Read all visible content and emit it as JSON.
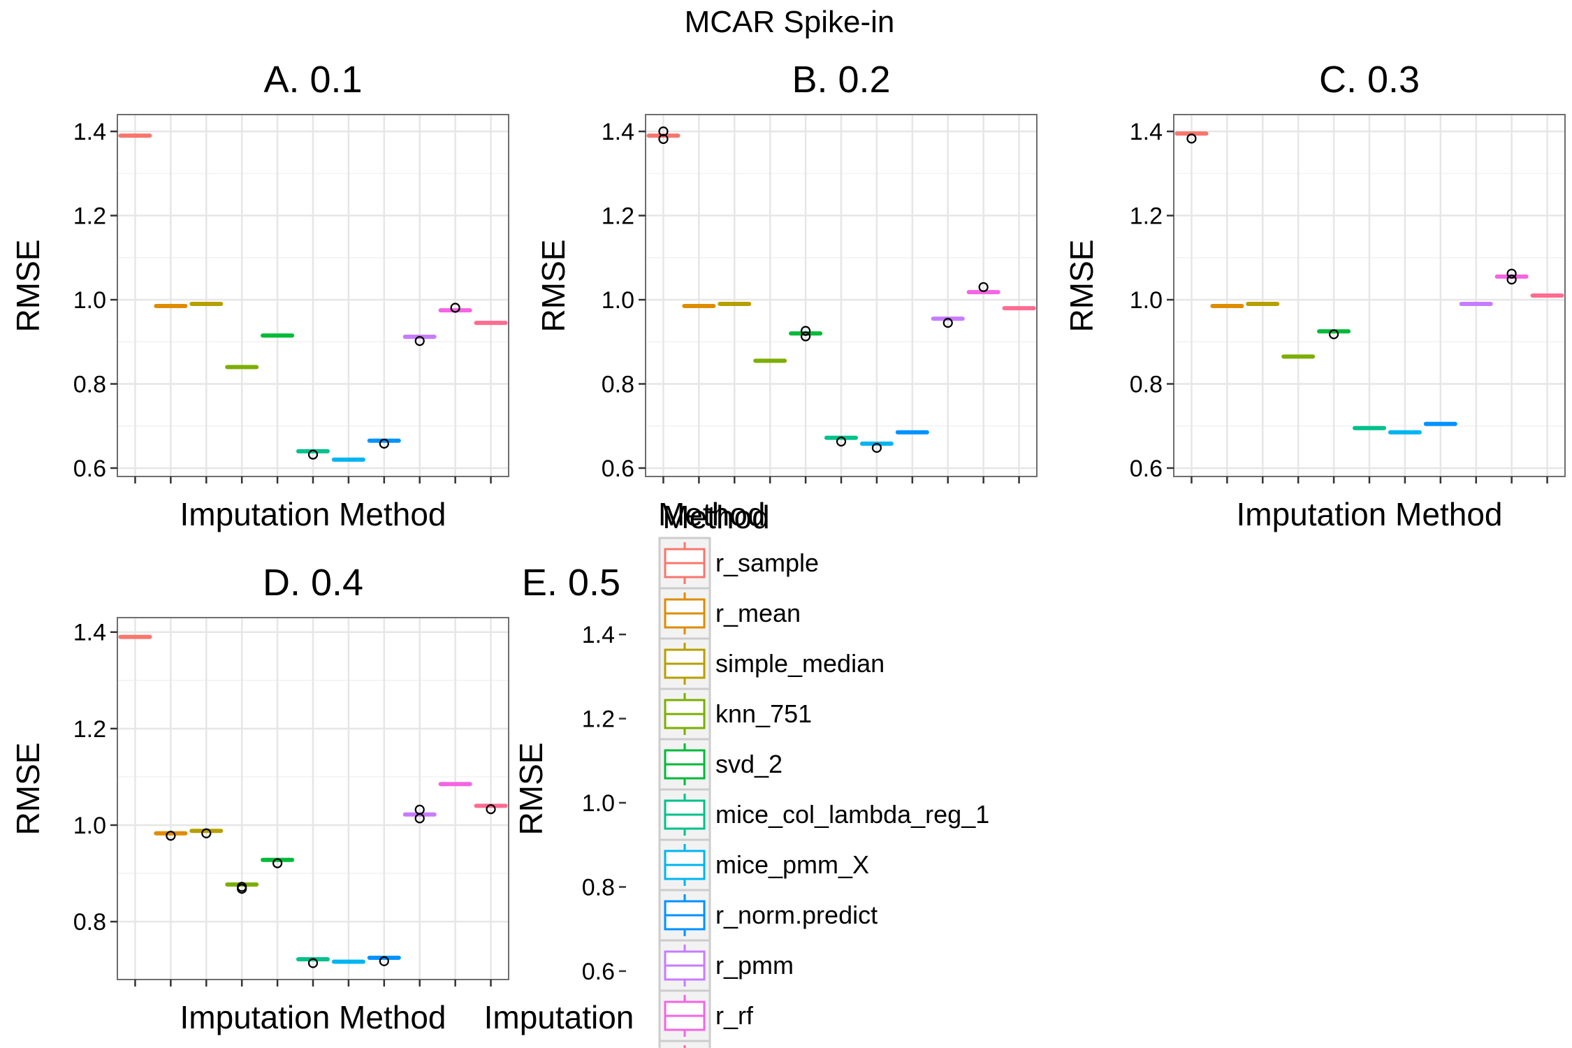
{
  "figure": {
    "title": "MCAR Spike-in"
  },
  "legend": {
    "title": "Method",
    "entries": [
      {
        "name": "r_sample",
        "color": "#F8766D"
      },
      {
        "name": "r_mean",
        "color": "#DE8C00"
      },
      {
        "name": "simple_median",
        "color": "#B79F00"
      },
      {
        "name": "knn_751",
        "color": "#7CAE00"
      },
      {
        "name": "svd_2",
        "color": "#00BA38"
      },
      {
        "name": "mice_col_lambda_reg_1",
        "color": "#00C08B"
      },
      {
        "name": "mice_pmm_X",
        "color": "#00B4F0"
      },
      {
        "name": "r_norm.predict",
        "color": "#0092FF"
      },
      {
        "name": "r_pmm",
        "color": "#C77CFF"
      },
      {
        "name": "r_rf",
        "color": "#F564E3"
      },
      {
        "name": "",
        "color": "#FF6C91"
      }
    ]
  },
  "chart_data": [
    {
      "type": "box",
      "title": "A. 0.1",
      "xlabel": "Imputation Method",
      "ylabel": "RMSE",
      "ylim": [
        0.58,
        1.44
      ],
      "yticks": [
        0.6,
        0.8,
        1.0,
        1.2,
        1.4
      ],
      "ytick_labels": [
        "0.6",
        "0.8",
        "1.0",
        "1.2",
        "1.4"
      ],
      "grid": true,
      "values": [
        1.39,
        0.985,
        0.99,
        0.84,
        0.915,
        0.64,
        0.62,
        0.665,
        0.912,
        0.975,
        0.945
      ],
      "outliers": [
        [],
        [],
        [],
        [],
        [],
        [
          0.632
        ],
        [],
        [
          0.658
        ],
        [
          0.902
        ],
        [
          0.981
        ],
        []
      ]
    },
    {
      "type": "box",
      "title": "B. 0.2",
      "xlabel": "Method",
      "ylabel": "RMSE",
      "ylim": [
        0.58,
        1.44
      ],
      "yticks": [
        0.6,
        0.8,
        1.0,
        1.2,
        1.4
      ],
      "ytick_labels": [
        "0.6",
        "0.8",
        "1.0",
        "1.2",
        "1.4"
      ],
      "grid": true,
      "values": [
        1.39,
        0.985,
        0.99,
        0.855,
        0.92,
        0.672,
        0.658,
        0.685,
        0.955,
        1.018,
        0.98
      ],
      "outliers": [
        [
          1.4,
          1.382
        ],
        [],
        [],
        [],
        [
          0.926,
          0.913
        ],
        [
          0.663
        ],
        [
          0.648
        ],
        [],
        [
          0.945
        ],
        [
          1.03
        ],
        []
      ]
    },
    {
      "type": "box",
      "title": "C. 0.3",
      "xlabel": "Imputation Method",
      "ylabel": "RMSE",
      "ylim": [
        0.58,
        1.44
      ],
      "yticks": [
        0.6,
        0.8,
        1.0,
        1.2,
        1.4
      ],
      "ytick_labels": [
        "0.6",
        "0.8",
        "1.0",
        "1.2",
        "1.4"
      ],
      "grid": true,
      "values": [
        1.395,
        0.985,
        0.99,
        0.865,
        0.925,
        0.695,
        0.685,
        0.705,
        0.99,
        1.055,
        1.01
      ],
      "outliers": [
        [
          1.383
        ],
        [],
        [],
        [],
        [
          0.918
        ],
        [],
        [],
        [],
        [],
        [
          1.062,
          1.048
        ],
        []
      ]
    },
    {
      "type": "box",
      "title": "D. 0.4",
      "xlabel": "Imputation Method",
      "ylabel": "RMSE",
      "ylim": [
        0.68,
        1.43
      ],
      "yticks": [
        0.8,
        1.0,
        1.2,
        1.4
      ],
      "ytick_labels": [
        "0.8",
        "1.0",
        "1.2",
        "1.4"
      ],
      "grid": true,
      "values": [
        1.39,
        0.983,
        0.988,
        0.877,
        0.928,
        0.722,
        0.717,
        0.725,
        1.022,
        1.085,
        1.04
      ],
      "outliers": [
        [],
        [
          0.978
        ],
        [
          0.983
        ],
        [
          0.872,
          0.868
        ],
        [
          0.921
        ],
        [
          0.714
        ],
        [],
        [
          0.718
        ],
        [
          1.032,
          1.014
        ],
        [],
        [
          1.033
        ]
      ]
    },
    {
      "type": "box",
      "title": "E. 0.5",
      "xlabel": "Imputation",
      "ylabel": "RMSE",
      "ylim": [
        0.58,
        1.44
      ],
      "yticks": [
        0.6,
        0.8,
        1.0,
        1.2,
        1.4
      ],
      "ytick_labels": [
        "0.6",
        "0.8",
        "1.0",
        "1.2",
        "1.4"
      ],
      "grid": false
    }
  ]
}
